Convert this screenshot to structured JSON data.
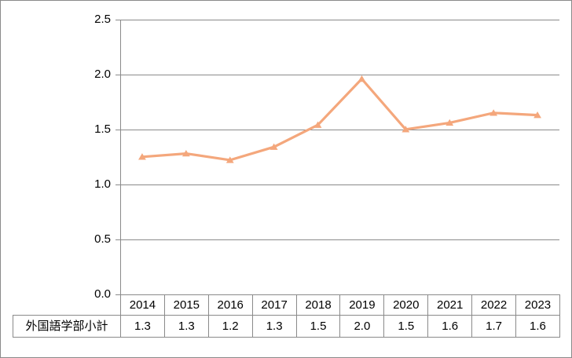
{
  "chart_data": {
    "type": "line",
    "title": "",
    "categories": [
      "2014",
      "2015",
      "2016",
      "2017",
      "2018",
      "2019",
      "2020",
      "2021",
      "2022",
      "2023"
    ],
    "series": [
      {
        "name": "外国語学部小計",
        "values": [
          1.3,
          1.3,
          1.2,
          1.3,
          1.5,
          2.0,
          1.5,
          1.6,
          1.7,
          1.6
        ],
        "plotted_values": [
          1.25,
          1.28,
          1.22,
          1.34,
          1.54,
          1.96,
          1.5,
          1.56,
          1.65,
          1.63
        ],
        "marker": "triangle-up"
      }
    ],
    "xlabel": "",
    "ylabel": "",
    "ylim": [
      0,
      2.5
    ],
    "ytick_labels": [
      "0.0",
      "0.5",
      "1.0",
      "1.5",
      "2.0",
      "2.5"
    ],
    "grid": true,
    "legend": "none",
    "data_table_shown": true,
    "colors": {
      "series_line": "#f4a77c",
      "series_marker": "#f4a77c",
      "gridline": "#8a8a8a",
      "axis": "#8a8a8a",
      "table_border": "#8a8a8a",
      "text": "#000000",
      "background": "#ffffff"
    }
  },
  "table": {
    "row_header": "外国語学部小計",
    "columns": [
      "2014",
      "2015",
      "2016",
      "2017",
      "2018",
      "2019",
      "2020",
      "2021",
      "2022",
      "2023"
    ],
    "values": [
      "1.3",
      "1.3",
      "1.2",
      "1.3",
      "1.5",
      "2.0",
      "1.5",
      "1.6",
      "1.7",
      "1.6"
    ]
  }
}
